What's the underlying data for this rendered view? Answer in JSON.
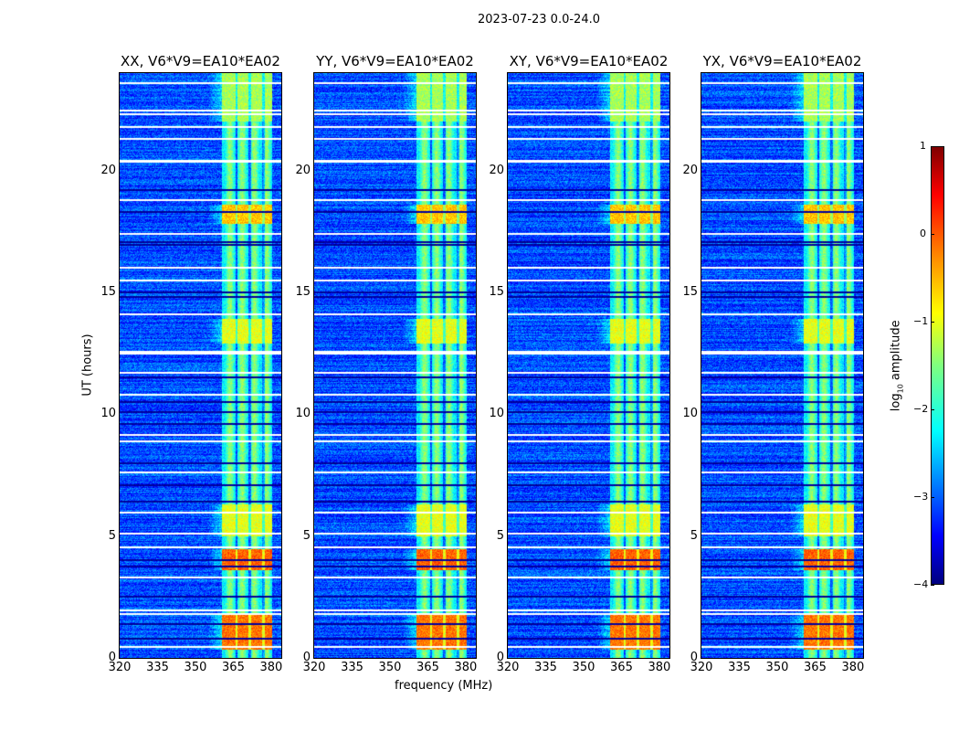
{
  "chart_data": {
    "type": "heatmap",
    "title": "2023-07-23 0.0-24.0",
    "xlabel": "frequency (MHz)",
    "ylabel": "UT (hours)",
    "xlim": [
      320,
      384
    ],
    "ylim": [
      0,
      24
    ],
    "xticks": [
      320,
      335,
      350,
      365,
      380
    ],
    "yticks": [
      0,
      5,
      10,
      15,
      20
    ],
    "panels": [
      {
        "title": "XX, V6*V9=EA10*EA02",
        "show_ylabel": true
      },
      {
        "title": "YY, V6*V9=EA10*EA02"
      },
      {
        "title": "XY, V6*V9=EA10*EA02"
      },
      {
        "title": "YX, V6*V9=EA10*EA02"
      }
    ],
    "colorbar": {
      "label_prefix": "log",
      "label_sub": "10",
      "label_suffix": " amplitude",
      "range": [
        -4,
        1
      ],
      "ticks": [
        "1",
        "0",
        "−1",
        "−2",
        "−3",
        "−4"
      ],
      "tick_values": [
        1,
        0,
        -1,
        -2,
        -3,
        -4
      ],
      "colormap": "jet"
    },
    "background_level": -3.0,
    "rfi_band_mhz": [
      360.5,
      380.5
    ],
    "rfi_subband_edges_mhz": [
      366.2,
      371.6,
      377.0
    ],
    "rfi_band_level": -1.8,
    "bursts": [
      {
        "t": [
          0.35,
          1.75
        ],
        "level": -0.2
      },
      {
        "t": [
          3.6,
          4.45
        ],
        "level": -0.1
      },
      {
        "t": [
          5.0,
          6.3
        ],
        "level": -1.0
      },
      {
        "t": [
          12.9,
          13.9
        ],
        "level": -1.0
      },
      {
        "t": [
          17.8,
          18.6
        ],
        "level": -0.6
      },
      {
        "t": [
          22.0,
          24.0
        ],
        "level": -1.3
      }
    ],
    "flagged_hours": [
      0.45,
      1.8,
      1.95,
      3.3,
      4.55,
      5.1,
      5.95,
      7.6,
      8.9,
      9.15,
      10.8,
      11.7,
      12.5,
      12.55,
      14.1,
      15.5,
      16.0,
      17.4,
      18.8,
      20.35,
      20.4,
      21.3,
      21.8,
      22.3,
      22.45,
      23.6
    ],
    "dropout_hours": [
      0.8,
      1.4,
      2.5,
      4.0,
      3.75,
      6.4,
      7.1,
      8.0,
      9.6,
      10.1,
      10.5,
      11.5,
      14.8,
      15.0,
      16.95,
      17.05,
      18.3,
      19.2
    ]
  }
}
